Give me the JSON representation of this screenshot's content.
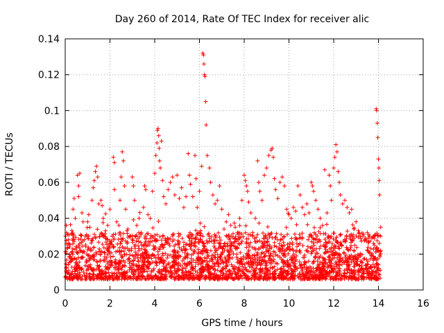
{
  "chart_data": {
    "type": "scatter",
    "title": "Day 260 of 2014, Rate Of TEC Index for receiver alic",
    "xlabel": "GPS time / hours",
    "ylabel": "ROTI / TECUs",
    "xlim": [
      0,
      16
    ],
    "ylim": [
      0,
      0.14
    ],
    "xticks": [
      0,
      2,
      4,
      6,
      8,
      10,
      12,
      14,
      16
    ],
    "xtick_labels": [
      "0",
      "2",
      "4",
      "6",
      "8",
      "10",
      "12",
      "14",
      "16"
    ],
    "yticks": [
      0,
      0.02,
      0.04,
      0.06,
      0.08,
      0.1,
      0.12,
      0.14
    ],
    "ytick_labels": [
      "0",
      "0.02",
      "0.04",
      "0.06",
      "0.08",
      "0.1",
      "0.12",
      "0.14"
    ],
    "grid": true,
    "marker": "+",
    "color": "#ff0000",
    "series": [
      {
        "name": "ROTI",
        "points": [
          [
            0.05,
            0.036
          ],
          [
            0.1,
            0.031
          ],
          [
            0.15,
            0.028
          ],
          [
            0.2,
            0.024
          ],
          [
            0.3,
            0.033
          ],
          [
            0.35,
            0.045
          ],
          [
            0.4,
            0.051
          ],
          [
            0.45,
            0.04
          ],
          [
            0.55,
            0.064
          ],
          [
            0.6,
            0.058
          ],
          [
            0.6,
            0.052
          ],
          [
            0.65,
            0.065
          ],
          [
            0.75,
            0.043
          ],
          [
            0.8,
            0.038
          ],
          [
            0.9,
            0.03
          ],
          [
            1.0,
            0.038
          ],
          [
            1.05,
            0.042
          ],
          [
            1.1,
            0.035
          ],
          [
            1.2,
            0.05
          ],
          [
            1.25,
            0.057
          ],
          [
            1.3,
            0.061
          ],
          [
            1.35,
            0.066
          ],
          [
            1.4,
            0.069
          ],
          [
            1.45,
            0.063
          ],
          [
            1.5,
            0.048
          ],
          [
            1.6,
            0.05
          ],
          [
            1.65,
            0.047
          ],
          [
            1.7,
            0.04
          ],
          [
            1.8,
            0.033
          ],
          [
            1.9,
            0.036
          ],
          [
            2.0,
            0.045
          ],
          [
            2.1,
            0.03
          ],
          [
            2.15,
            0.074
          ],
          [
            2.2,
            0.071
          ],
          [
            2.2,
            0.056
          ],
          [
            2.3,
            0.038
          ],
          [
            2.4,
            0.036
          ],
          [
            2.45,
            0.05
          ],
          [
            2.5,
            0.063
          ],
          [
            2.55,
            0.077
          ],
          [
            2.6,
            0.072
          ],
          [
            2.65,
            0.058
          ],
          [
            2.7,
            0.045
          ],
          [
            2.8,
            0.034
          ],
          [
            2.9,
            0.03
          ],
          [
            3.0,
            0.063
          ],
          [
            3.05,
            0.058
          ],
          [
            3.1,
            0.05
          ],
          [
            3.2,
            0.036
          ],
          [
            3.3,
            0.04
          ],
          [
            3.4,
            0.032
          ],
          [
            3.5,
            0.046
          ],
          [
            3.55,
            0.058
          ],
          [
            3.6,
            0.056
          ],
          [
            3.7,
            0.042
          ],
          [
            3.8,
            0.04
          ],
          [
            3.9,
            0.055
          ],
          [
            4.0,
            0.065
          ],
          [
            4.05,
            0.075
          ],
          [
            4.1,
            0.082
          ],
          [
            4.12,
            0.089
          ],
          [
            4.15,
            0.09
          ],
          [
            4.18,
            0.086
          ],
          [
            4.2,
            0.079
          ],
          [
            4.22,
            0.072
          ],
          [
            4.25,
            0.068
          ],
          [
            4.3,
            0.083
          ],
          [
            4.35,
            0.061
          ],
          [
            4.4,
            0.052
          ],
          [
            4.5,
            0.048
          ],
          [
            4.6,
            0.056
          ],
          [
            4.7,
            0.06
          ],
          [
            4.8,
            0.063
          ],
          [
            4.9,
            0.053
          ],
          [
            5.0,
            0.064
          ],
          [
            5.1,
            0.051
          ],
          [
            5.2,
            0.057
          ],
          [
            5.3,
            0.046
          ],
          [
            5.4,
            0.052
          ],
          [
            5.5,
            0.076
          ],
          [
            5.55,
            0.064
          ],
          [
            5.6,
            0.059
          ],
          [
            5.7,
            0.052
          ],
          [
            5.8,
            0.075
          ],
          [
            5.85,
            0.062
          ],
          [
            5.9,
            0.046
          ],
          [
            6.0,
            0.055
          ],
          [
            6.1,
            0.069
          ],
          [
            6.15,
            0.132
          ],
          [
            6.18,
            0.131
          ],
          [
            6.2,
            0.126
          ],
          [
            6.22,
            0.12
          ],
          [
            6.25,
            0.119
          ],
          [
            6.28,
            0.105
          ],
          [
            6.3,
            0.092
          ],
          [
            6.35,
            0.075
          ],
          [
            6.45,
            0.068
          ],
          [
            6.5,
            0.06
          ],
          [
            6.6,
            0.053
          ],
          [
            6.7,
            0.048
          ],
          [
            6.8,
            0.05
          ],
          [
            6.9,
            0.058
          ],
          [
            7.0,
            0.045
          ],
          [
            7.1,
            0.034
          ],
          [
            7.2,
            0.038
          ],
          [
            7.3,
            0.03
          ],
          [
            7.4,
            0.036
          ],
          [
            7.5,
            0.029
          ],
          [
            7.6,
            0.035
          ],
          [
            7.7,
            0.032
          ],
          [
            7.8,
            0.04
          ],
          [
            7.9,
            0.05
          ],
          [
            8.0,
            0.064
          ],
          [
            8.05,
            0.061
          ],
          [
            8.1,
            0.058
          ],
          [
            8.15,
            0.055
          ],
          [
            8.2,
            0.049
          ],
          [
            8.3,
            0.043
          ],
          [
            8.5,
            0.04
          ],
          [
            8.6,
            0.072
          ],
          [
            8.65,
            0.06
          ],
          [
            8.7,
            0.055
          ],
          [
            8.8,
            0.05
          ],
          [
            8.9,
            0.064
          ],
          [
            9.0,
            0.068
          ],
          [
            9.1,
            0.075
          ],
          [
            9.2,
            0.078
          ],
          [
            9.25,
            0.079
          ],
          [
            9.3,
            0.074
          ],
          [
            9.35,
            0.062
          ],
          [
            9.4,
            0.056
          ],
          [
            9.5,
            0.051
          ],
          [
            9.6,
            0.06
          ],
          [
            9.7,
            0.063
          ],
          [
            9.8,
            0.058
          ],
          [
            9.9,
            0.045
          ],
          [
            10.0,
            0.042
          ],
          [
            10.1,
            0.04
          ],
          [
            10.2,
            0.046
          ],
          [
            10.3,
            0.044
          ],
          [
            10.4,
            0.058
          ],
          [
            10.5,
            0.053
          ],
          [
            10.6,
            0.046
          ],
          [
            10.7,
            0.042
          ],
          [
            10.8,
            0.048
          ],
          [
            10.9,
            0.043
          ],
          [
            11.0,
            0.06
          ],
          [
            11.05,
            0.058
          ],
          [
            11.1,
            0.055
          ],
          [
            11.2,
            0.05
          ],
          [
            11.3,
            0.045
          ],
          [
            11.4,
            0.04
          ],
          [
            11.5,
            0.036
          ],
          [
            11.6,
            0.067
          ],
          [
            11.7,
            0.043
          ],
          [
            11.8,
            0.064
          ],
          [
            11.85,
            0.058
          ],
          [
            11.9,
            0.05
          ],
          [
            12.0,
            0.068
          ],
          [
            12.05,
            0.074
          ],
          [
            12.1,
            0.081
          ],
          [
            12.15,
            0.077
          ],
          [
            12.2,
            0.066
          ],
          [
            12.25,
            0.06
          ],
          [
            12.3,
            0.053
          ],
          [
            12.4,
            0.048
          ],
          [
            12.5,
            0.05
          ],
          [
            12.6,
            0.046
          ],
          [
            12.7,
            0.043
          ],
          [
            12.8,
            0.045
          ],
          [
            12.9,
            0.034
          ],
          [
            13.0,
            0.038
          ],
          [
            13.1,
            0.033
          ],
          [
            13.2,
            0.03
          ],
          [
            13.3,
            0.03
          ],
          [
            13.4,
            0.028
          ],
          [
            13.5,
            0.032
          ],
          [
            13.6,
            0.03
          ],
          [
            13.7,
            0.029
          ],
          [
            13.8,
            0.03
          ],
          [
            13.9,
            0.101
          ],
          [
            13.92,
            0.1
          ],
          [
            13.95,
            0.093
          ],
          [
            13.97,
            0.085
          ],
          [
            14.0,
            0.073
          ],
          [
            14.02,
            0.068
          ],
          [
            14.03,
            0.061
          ],
          [
            14.05,
            0.053
          ],
          [
            14.1,
            0.035
          ],
          [
            14.1,
            0.03
          ]
        ]
      }
    ]
  }
}
